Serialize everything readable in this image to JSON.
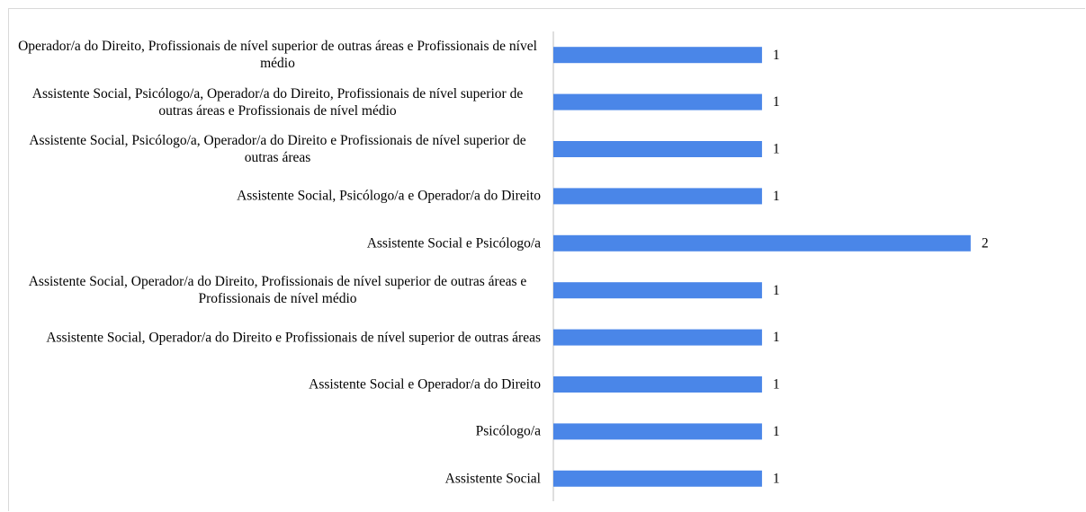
{
  "chart_data": {
    "type": "barh",
    "categories": [
      "Operador/a do Direito, Profissionais de nível superior de outras áreas e Profissionais de nível médio",
      "Assistente Social, Psicólogo/a, Operador/a do Direito, Profissionais de nível superior de outras áreas e Profissionais de nível médio",
      "Assistente Social, Psicólogo/a, Operador/a do Direito e Profissionais de nível superior de outras áreas",
      "Assistente Social, Psicólogo/a e Operador/a do Direito",
      "Assistente Social e Psicólogo/a",
      "Assistente Social, Operador/a do Direito, Profissionais de nível superior de outras áreas e Profissionais de nível médio",
      "Assistente Social, Operador/a do Direito e Profissionais de nível superior de outras áreas",
      "Assistente Social e Operador/a do Direito",
      "Psicólogo/a",
      "Assistente Social"
    ],
    "values": [
      1,
      1,
      1,
      1,
      2,
      1,
      1,
      1,
      1,
      1
    ],
    "color": "#4a86e8",
    "xlim": [
      0,
      2.35
    ]
  }
}
